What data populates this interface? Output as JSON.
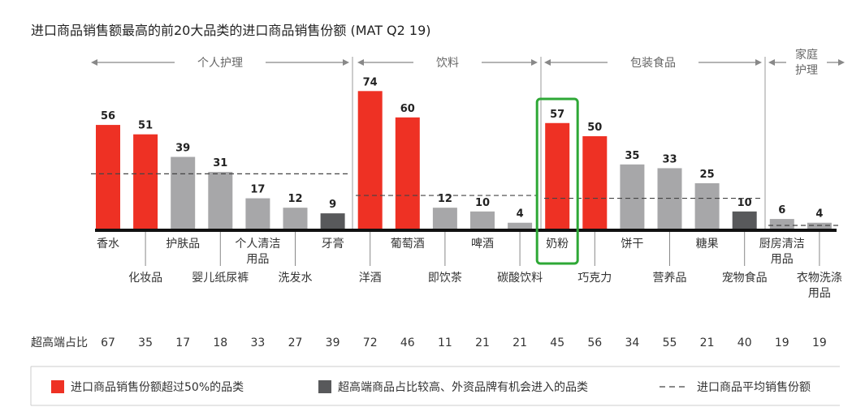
{
  "chart_data": {
    "type": "bar",
    "title": "进口商品销售额最高的前20大品类的进口商品销售份额 (MAT Q2 19)",
    "categories": [
      "香水",
      "化妆品",
      "护肤品",
      "婴儿纸尿裤",
      "个人清洁用品",
      "洗发水",
      "牙膏",
      "洋酒",
      "葡萄酒",
      "即饮茶",
      "啤酒",
      "碳酸饮料",
      "奶粉",
      "巧克力",
      "饼干",
      "营养品",
      "糖果",
      "宠物食品",
      "厨房清洁用品",
      "衣物洗涤用品"
    ],
    "values": [
      56,
      51,
      39,
      31,
      17,
      12,
      9,
      74,
      60,
      12,
      10,
      4,
      57,
      50,
      35,
      33,
      25,
      10,
      6,
      4
    ],
    "bar_type": [
      "red",
      "red",
      "grey",
      "grey",
      "grey",
      "grey",
      "dark",
      "red",
      "red",
      "grey",
      "grey",
      "grey",
      "red",
      "red",
      "grey",
      "grey",
      "grey",
      "dark",
      "grey",
      "grey"
    ],
    "groups": [
      {
        "label": "个人护理",
        "start": 0,
        "end": 6,
        "average": 30
      },
      {
        "label": "饮料",
        "start": 7,
        "end": 11,
        "average": 18.5
      },
      {
        "label": "包装食品",
        "start": 12,
        "end": 17,
        "average": 17
      },
      {
        "label": "家庭护理",
        "start": 18,
        "end": 19,
        "average": 2.6
      }
    ],
    "highlighted_category": "奶粉",
    "ratio_row_label": "超高端占比",
    "ratio_values": [
      67,
      35,
      17,
      18,
      33,
      27,
      39,
      72,
      46,
      11,
      21,
      21,
      45,
      56,
      34,
      55,
      21,
      40,
      19,
      19
    ],
    "legend": [
      {
        "label": "进口商品销售份额超过50%的品类",
        "type": "red"
      },
      {
        "label": "超高端商品占比较高、外资品牌有机会进入的品类",
        "type": "dark"
      },
      {
        "label": "进口商品平均销售份额",
        "type": "dashed"
      }
    ],
    "legend_placement": "bottom",
    "colors": {
      "red": "#ee3124",
      "grey": "#a7a7a9",
      "dark": "#58595b",
      "highlight": "#2ea836"
    }
  }
}
